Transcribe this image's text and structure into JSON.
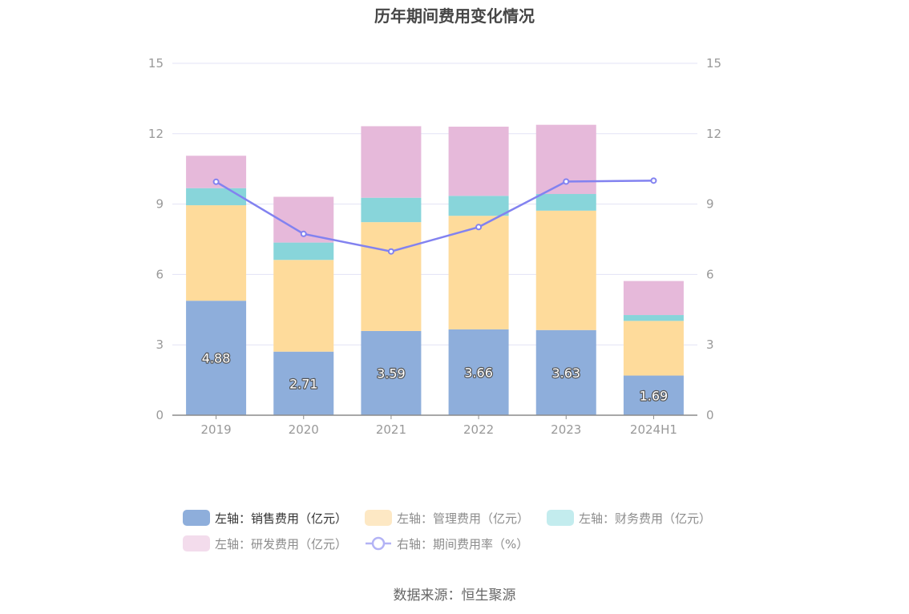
{
  "chart_data": {
    "type": "bar",
    "title": "历年期间费用变化情况",
    "categories": [
      "2019",
      "2020",
      "2021",
      "2022",
      "2023",
      "2024H1"
    ],
    "series": [
      {
        "name": "左轴：销售费用（亿元）",
        "axis": "left",
        "kind": "stacked-bar",
        "color": "#8eaedb",
        "values": [
          4.88,
          2.71,
          3.59,
          3.66,
          3.63,
          1.69
        ],
        "labels": [
          "4.88",
          "2.71",
          "3.59",
          "3.66",
          "3.63",
          "1.69"
        ]
      },
      {
        "name": "左轴：管理费用（亿元）",
        "axis": "left",
        "kind": "stacked-bar",
        "color": "#fedb9b",
        "values": [
          4.07,
          3.91,
          4.64,
          4.84,
          5.09,
          2.33
        ]
      },
      {
        "name": "左轴：财务费用（亿元）",
        "axis": "left",
        "kind": "stacked-bar",
        "color": "#88d5da",
        "values": [
          0.73,
          0.74,
          1.04,
          0.85,
          0.71,
          0.25
        ]
      },
      {
        "name": "左轴：研发费用（亿元）",
        "axis": "left",
        "kind": "stacked-bar",
        "color": "#e6b9da",
        "values": [
          1.38,
          1.95,
          3.05,
          2.95,
          2.95,
          1.45
        ]
      },
      {
        "name": "右轴：期间费用率（%）",
        "axis": "right",
        "kind": "line",
        "color": "#8282f0",
        "values": [
          9.95,
          7.73,
          6.98,
          8.02,
          9.96,
          10.0
        ]
      }
    ],
    "y_left": {
      "min": 0,
      "max": 15,
      "ticks": [
        "0",
        "3",
        "6",
        "9",
        "12",
        "15"
      ]
    },
    "y_right": {
      "min": 0,
      "max": 15,
      "ticks": [
        "0",
        "3",
        "6",
        "9",
        "12",
        "15"
      ]
    },
    "grid": true,
    "legend_position": "bottom"
  },
  "legend": {
    "rows": [
      [
        {
          "label": "左轴：销售费用（亿元）",
          "color": "#8eaedb",
          "type": "bar",
          "active": true
        },
        {
          "label": "左轴：管理费用（亿元）",
          "color": "#fde8c4",
          "type": "bar",
          "active": false
        },
        {
          "label": "左轴：财务费用（亿元）",
          "color": "#c3ecee",
          "type": "bar",
          "active": false
        }
      ],
      [
        {
          "label": "左轴：研发费用（亿元）",
          "color": "#f3dcec",
          "type": "bar",
          "active": false
        },
        {
          "label": "右轴：期间费用率（%）",
          "color": "#b3b3f5",
          "type": "line",
          "active": false
        }
      ]
    ]
  },
  "source": "数据来源：恒生聚源"
}
